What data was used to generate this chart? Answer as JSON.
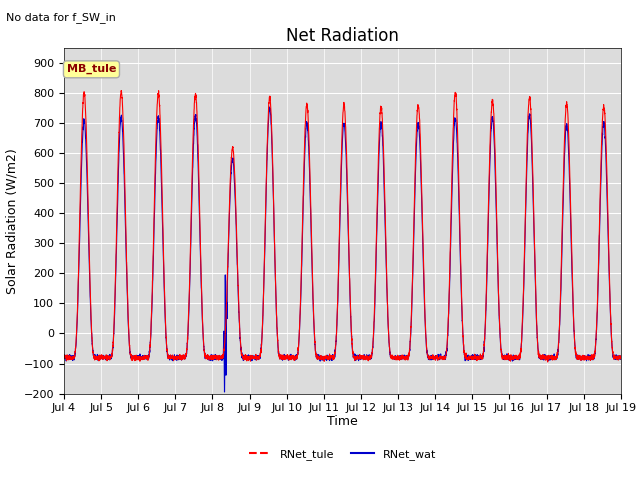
{
  "title": "Net Radiation",
  "subtitle": "No data for f_SW_in",
  "ylabel": "Solar Radiation (W/m2)",
  "xlabel": "Time",
  "ylim": [
    -200,
    950
  ],
  "yticks": [
    -200,
    -100,
    0,
    100,
    200,
    300,
    400,
    500,
    600,
    700,
    800,
    900
  ],
  "xtick_labels": [
    "Jul 4",
    "Jul 5",
    "Jul 6",
    "Jul 7",
    "Jul 8",
    "Jul 9",
    "Jul 10",
    "Jul 11",
    "Jul 12",
    "Jul 13",
    "Jul 14",
    "Jul 15",
    "Jul 16",
    "Jul 17",
    "Jul 18",
    "Jul 19"
  ],
  "line_color_tule": "#FF0000",
  "line_color_wat": "#0000CC",
  "legend_label_tule": "RNet_tule",
  "legend_label_wat": "RNet_wat",
  "watermark_text": "MB_tule",
  "watermark_bg": "#FFFF99",
  "watermark_border": "#AAAAAA",
  "grid_color": "#FFFFFF",
  "bg_color": "#DCDCDC",
  "title_fontsize": 12,
  "label_fontsize": 9,
  "tick_fontsize": 8
}
